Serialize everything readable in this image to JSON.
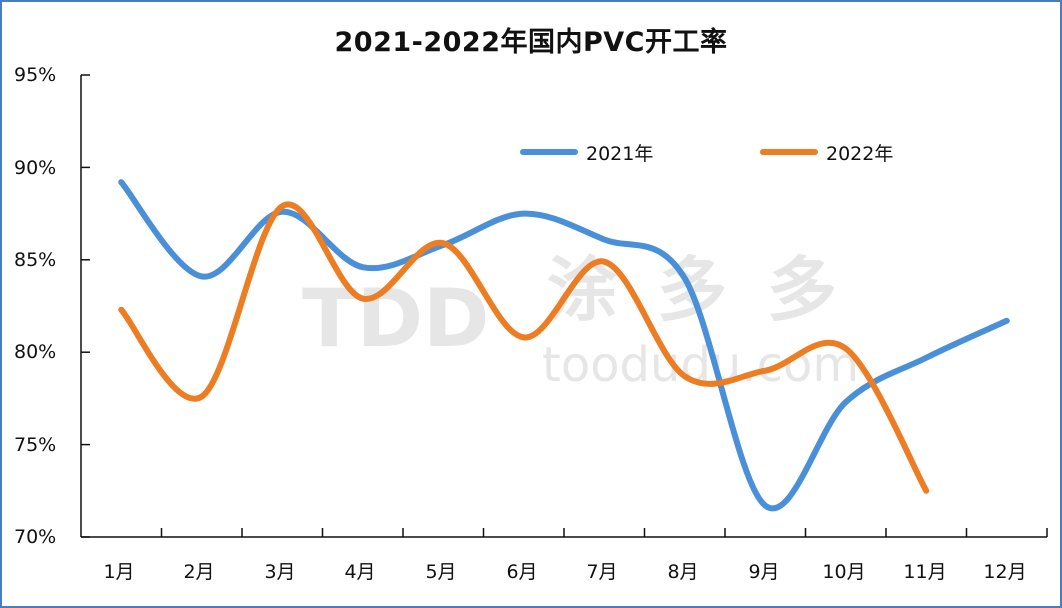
{
  "title": "2021-2022年国内PVC开工率",
  "colors": {
    "series_2021": "#4a90d9",
    "series_2022": "#ed7d22",
    "axis": "#111111",
    "border": "#4a7cc4"
  },
  "legend": [
    {
      "label": "2021年",
      "color": "#4a90d9"
    },
    {
      "label": "2022年",
      "color": "#ed7d22"
    }
  ],
  "y_axis": {
    "ticks": [
      "95%",
      "90%",
      "85%",
      "80%",
      "75%",
      "70%"
    ]
  },
  "x_axis": {
    "ticks": [
      "1月",
      "2月",
      "3月",
      "4月",
      "5月",
      "6月",
      "7月",
      "8月",
      "9月",
      "10月",
      "11月",
      "12月"
    ]
  },
  "watermark": {
    "logo": "TDD",
    "brand": "涂多多",
    "url": "toodudu.com"
  },
  "chart_data": {
    "type": "line",
    "title": "2021-2022年国内PVC开工率",
    "xlabel": "",
    "ylabel": "",
    "categories": [
      "1月",
      "2月",
      "3月",
      "4月",
      "5月",
      "6月",
      "7月",
      "8月",
      "9月",
      "10月",
      "11月",
      "12月"
    ],
    "series": [
      {
        "name": "2021年",
        "color": "#4a90d9",
        "values": [
          89.2,
          84.1,
          87.6,
          84.6,
          85.8,
          87.5,
          86.1,
          84.0,
          71.7,
          77.3,
          79.7,
          81.7
        ]
      },
      {
        "name": "2022年",
        "color": "#ed7d22",
        "values": [
          82.3,
          77.6,
          87.9,
          82.9,
          85.9,
          80.8,
          84.9,
          78.7,
          79.0,
          80.2,
          72.5,
          null
        ]
      }
    ],
    "ylim": [
      70,
      95
    ],
    "yticks": [
      70,
      75,
      80,
      85,
      90,
      95
    ],
    "ytick_format": "percent",
    "smooth": true,
    "grid": false,
    "legend_position": "top-right inside"
  }
}
